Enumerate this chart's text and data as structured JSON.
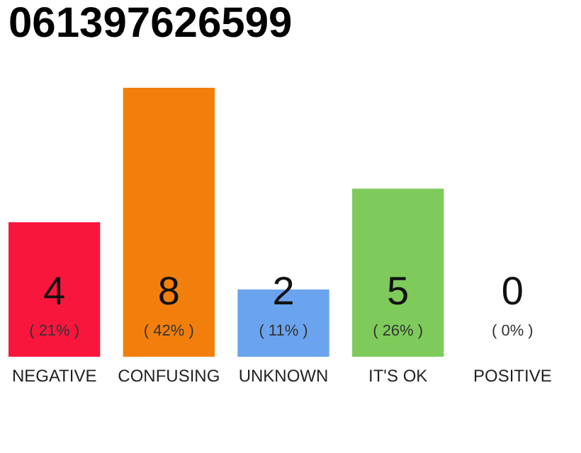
{
  "chart_data": {
    "type": "bar",
    "title": "061397626599",
    "categories": [
      "NEGATIVE",
      "CONFUSING",
      "UNKNOWN",
      "IT'S OK",
      "POSITIVE"
    ],
    "values": [
      4,
      8,
      2,
      5,
      0
    ],
    "colors": [
      "#f9163d",
      "#f27f0c",
      "#6aa3ee",
      "#7ecb5b",
      "#cccccc"
    ],
    "ylim": [
      0,
      8
    ],
    "tick_labels": "x",
    "grid": false,
    "data_labels": true,
    "annotations": [
      "( 21% )",
      "( 42% )",
      "( 11% )",
      "( 26% )",
      "( 0% )"
    ]
  }
}
